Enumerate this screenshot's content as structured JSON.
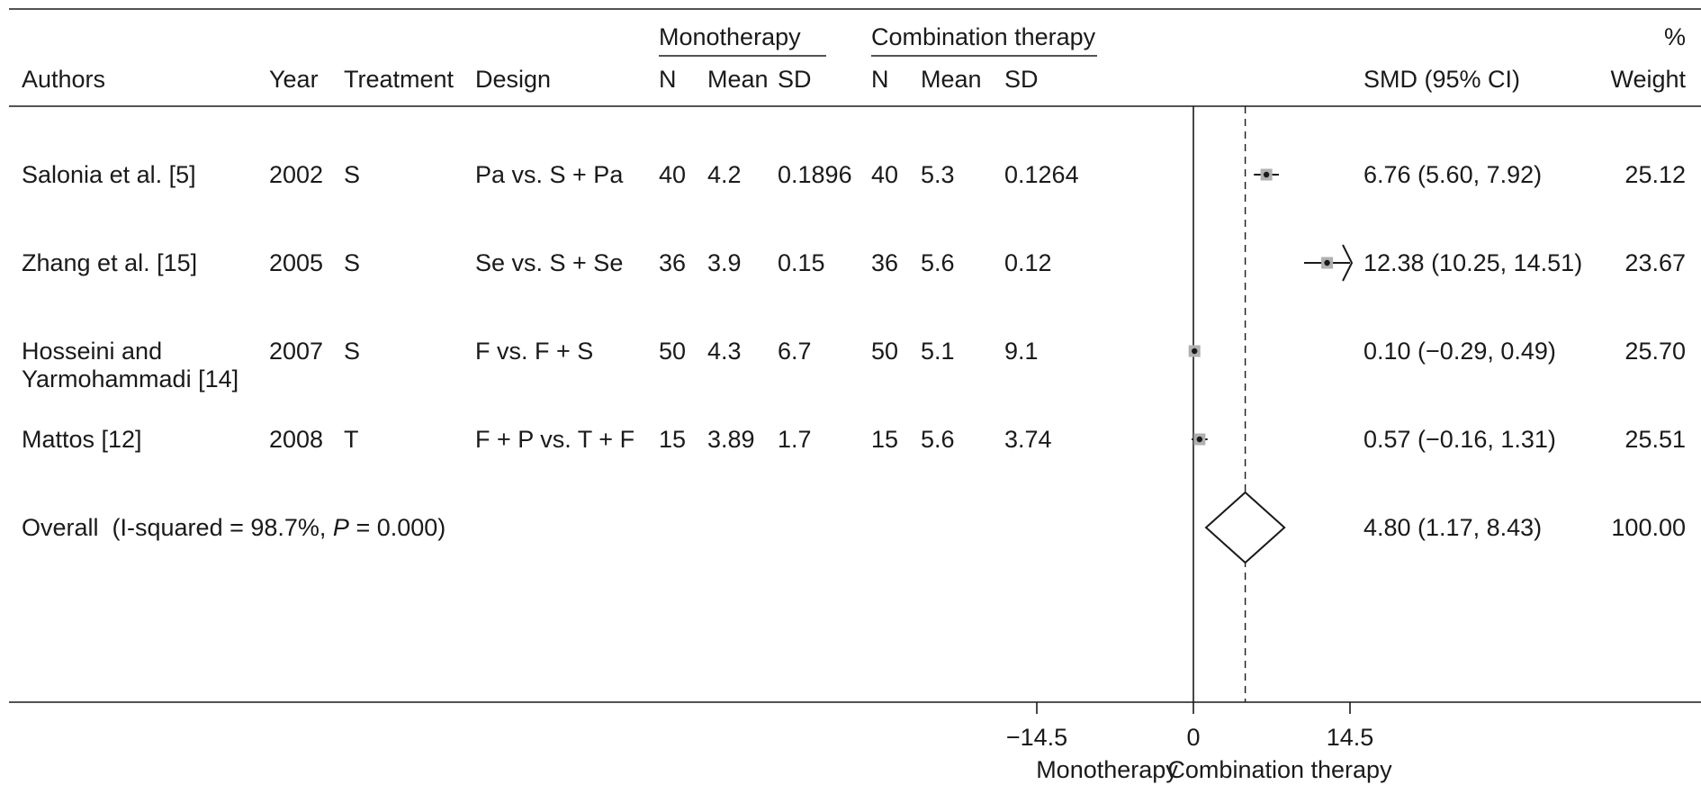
{
  "chart_data": {
    "type": "forest",
    "columns": {
      "authors": "Authors",
      "year": "Year",
      "treatment": "Treatment",
      "design": "Design",
      "group_mono": "Monotherapy",
      "group_combo": "Combination therapy",
      "n": "N",
      "mean": "Mean",
      "sd": "SD",
      "smd": "SMD (95% CI)",
      "weight_top": "%",
      "weight_bottom": "Weight"
    },
    "studies": [
      {
        "author_lines": [
          "Salonia et al. [5]"
        ],
        "year": "2002",
        "treatment": "S",
        "design": "Pa vs. S + Pa",
        "mono": {
          "n": "40",
          "mean": "4.2",
          "sd": "0.1896"
        },
        "combo": {
          "n": "40",
          "mean": "5.3",
          "sd": "0.1264"
        },
        "smd": 6.76,
        "lower": 5.6,
        "upper": 7.92,
        "smd_text": "6.76 (5.60, 7.92)",
        "weight": "25.12"
      },
      {
        "author_lines": [
          "Zhang et al. [15]"
        ],
        "year": "2005",
        "treatment": "S",
        "design": "Se  vs. S + Se",
        "mono": {
          "n": "36",
          "mean": "3.9",
          "sd": "0.15"
        },
        "combo": {
          "n": "36",
          "mean": "5.6",
          "sd": "0.12"
        },
        "smd": 12.38,
        "lower": 10.25,
        "upper": 14.51,
        "smd_text": "12.38 (10.25, 14.51)",
        "weight": "23.67"
      },
      {
        "author_lines": [
          "Hosseini and",
          "Yarmohammadi [14]"
        ],
        "year": "2007",
        "treatment": "S",
        "design": "F vs. F + S",
        "mono": {
          "n": "50",
          "mean": "4.3",
          "sd": "6.7"
        },
        "combo": {
          "n": "50",
          "mean": "5.1",
          "sd": "9.1"
        },
        "smd": 0.1,
        "lower": -0.29,
        "upper": 0.49,
        "smd_text": "0.10 (−0.29, 0.49)",
        "weight": "25.70"
      },
      {
        "author_lines": [
          "Mattos [12]"
        ],
        "year": "2008",
        "treatment": "T",
        "design": "F + P vs. T + F",
        "mono": {
          "n": "15",
          "mean": "3.89",
          "sd": "1.7"
        },
        "combo": {
          "n": "15",
          "mean": "5.6",
          "sd": "3.74"
        },
        "smd": 0.57,
        "lower": -0.16,
        "upper": 1.31,
        "smd_text": "0.57 (−0.16, 1.31)",
        "weight": "25.51"
      }
    ],
    "overall": {
      "label_prefix": "Overall  (I-squared = 98.7%, ",
      "label_p": "P",
      "label_suffix": " = 0.000)",
      "smd": 4.8,
      "lower": 1.17,
      "upper": 8.43,
      "smd_text": "4.80 (1.17, 8.43)",
      "weight": "100.00"
    },
    "x_axis": {
      "ticks": [
        {
          "value": -14.5,
          "label": "−14.5"
        },
        {
          "value": 0,
          "label": "0"
        },
        {
          "value": 14.5,
          "label": "14.5"
        }
      ],
      "clip": [
        -14.5,
        14.5
      ],
      "favours_left": "Monotherapy",
      "favours_right": "Combination therapy"
    }
  }
}
